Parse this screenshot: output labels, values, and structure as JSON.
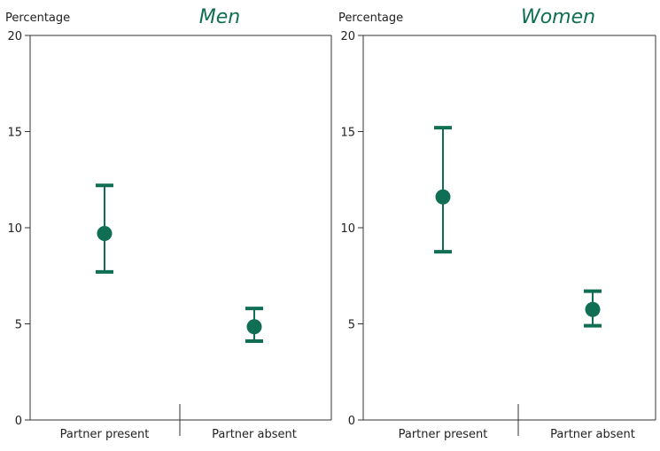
{
  "chart_data": [
    {
      "type": "scatter",
      "title": "Men",
      "ylabel": "Percentage",
      "ylim": [
        0,
        20
      ],
      "yticks": [
        0,
        5,
        10,
        15,
        20
      ],
      "categories": [
        "Partner present",
        "Partner absent"
      ],
      "series": [
        {
          "values": [
            9.7,
            4.85
          ],
          "lower": [
            7.7,
            4.1
          ],
          "upper": [
            12.2,
            5.8
          ]
        }
      ],
      "grid": false,
      "color": "#0f6e53"
    },
    {
      "type": "scatter",
      "title": "Women",
      "ylabel": "Percentage",
      "ylim": [
        0,
        20
      ],
      "yticks": [
        0,
        5,
        10,
        15,
        20
      ],
      "categories": [
        "Partner present",
        "Partner absent"
      ],
      "series": [
        {
          "values": [
            11.6,
            5.75
          ],
          "lower": [
            8.75,
            4.9
          ],
          "upper": [
            15.2,
            6.7
          ]
        }
      ],
      "grid": false,
      "color": "#0f6e53"
    }
  ]
}
